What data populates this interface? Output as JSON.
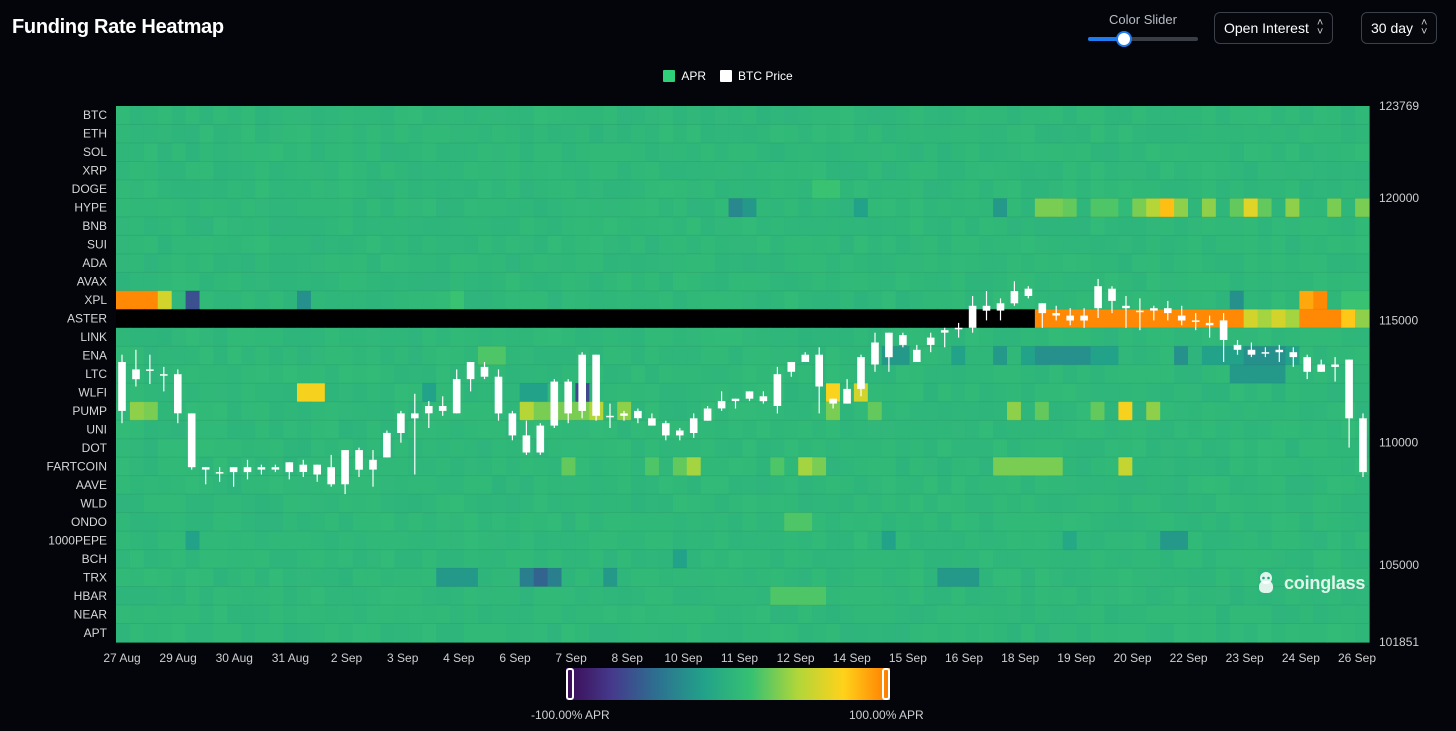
{
  "header": {
    "title": "Funding Rate Heatmap",
    "slider_label": "Color Slider",
    "slider_value": 0.33,
    "metric_select": "Open Interest",
    "range_select": "30 day"
  },
  "legend": [
    {
      "label": "APR",
      "color": "#2fd07a"
    },
    {
      "label": "BTC Price",
      "color": "#ffffff"
    }
  ],
  "colorbar": {
    "min_label": "-100.00% APR",
    "max_label": "100.00% APR",
    "stops": [
      "#3b0a55",
      "#453a8c",
      "#2c7290",
      "#22a389",
      "#36c172",
      "#b0d63a",
      "#ffd21a",
      "#ff7a00"
    ]
  },
  "watermark": "coinglass",
  "chart_data": {
    "type": "heatmap",
    "title": "Funding Rate Heatmap",
    "rows": [
      "BTC",
      "ETH",
      "SOL",
      "XRP",
      "DOGE",
      "HYPE",
      "BNB",
      "SUI",
      "ADA",
      "AVAX",
      "XPL",
      "ASTER",
      "LINK",
      "ENA",
      "LTC",
      "WLFI",
      "PUMP",
      "UNI",
      "DOT",
      "FARTCOIN",
      "AAVE",
      "WLD",
      "ONDO",
      "1000PEPE",
      "BCH",
      "TRX",
      "HBAR",
      "NEAR",
      "APT"
    ],
    "x_labels": [
      "27 Aug",
      "29 Aug",
      "30 Aug",
      "31 Aug",
      "2 Sep",
      "3 Sep",
      "4 Sep",
      "6 Sep",
      "7 Sep",
      "8 Sep",
      "10 Sep",
      "11 Sep",
      "12 Sep",
      "14 Sep",
      "15 Sep",
      "16 Sep",
      "18 Sep",
      "19 Sep",
      "20 Sep",
      "22 Sep",
      "23 Sep",
      "24 Sep",
      "26 Sep"
    ],
    "columns": 90,
    "value_range": [
      -100,
      100
    ],
    "value_unit": "% APR",
    "default_value": 5,
    "highlights": [
      {
        "row": "XPL",
        "start": 0,
        "end": 2,
        "value": 95
      },
      {
        "row": "XPL",
        "start": 3,
        "end": 3,
        "value": 55
      },
      {
        "row": "XPL",
        "start": 5,
        "end": 5,
        "value": -60
      },
      {
        "row": "XPL",
        "start": 13,
        "end": 13,
        "value": -25
      },
      {
        "row": "XPL",
        "start": 24,
        "end": 24,
        "value": 15
      },
      {
        "row": "XPL",
        "start": 80,
        "end": 80,
        "value": -25
      },
      {
        "row": "XPL",
        "start": 85,
        "end": 85,
        "value": 85
      },
      {
        "row": "XPL",
        "start": 86,
        "end": 86,
        "value": 95
      },
      {
        "row": "XPL",
        "start": 88,
        "end": 89,
        "value": 15
      },
      {
        "row": "ASTER",
        "start": 0,
        "end": 65,
        "value": -100
      },
      {
        "row": "ASTER",
        "start": 66,
        "end": 80,
        "value": 95
      },
      {
        "row": "ASTER",
        "start": 81,
        "end": 81,
        "value": 55
      },
      {
        "row": "ASTER",
        "start": 82,
        "end": 82,
        "value": 40
      },
      {
        "row": "ASTER",
        "start": 83,
        "end": 83,
        "value": 55
      },
      {
        "row": "ASTER",
        "start": 84,
        "end": 84,
        "value": 40
      },
      {
        "row": "ASTER",
        "start": 85,
        "end": 87,
        "value": 95
      },
      {
        "row": "ASTER",
        "start": 88,
        "end": 88,
        "value": 75
      },
      {
        "row": "ASTER",
        "start": 89,
        "end": 89,
        "value": 35
      },
      {
        "row": "HYPE",
        "start": 44,
        "end": 44,
        "value": -30
      },
      {
        "row": "HYPE",
        "start": 45,
        "end": 45,
        "value": -20
      },
      {
        "row": "HYPE",
        "start": 53,
        "end": 53,
        "value": -15
      },
      {
        "row": "HYPE",
        "start": 63,
        "end": 63,
        "value": -20
      },
      {
        "row": "HYPE",
        "start": 66,
        "end": 67,
        "value": 30
      },
      {
        "row": "HYPE",
        "start": 68,
        "end": 68,
        "value": 25
      },
      {
        "row": "HYPE",
        "start": 70,
        "end": 71,
        "value": 20
      },
      {
        "row": "HYPE",
        "start": 73,
        "end": 73,
        "value": 30
      },
      {
        "row": "HYPE",
        "start": 74,
        "end": 74,
        "value": 45
      },
      {
        "row": "HYPE",
        "start": 75,
        "end": 75,
        "value": 78
      },
      {
        "row": "HYPE",
        "start": 76,
        "end": 76,
        "value": 35
      },
      {
        "row": "HYPE",
        "start": 78,
        "end": 78,
        "value": 35
      },
      {
        "row": "HYPE",
        "start": 80,
        "end": 80,
        "value": 25
      },
      {
        "row": "HYPE",
        "start": 81,
        "end": 81,
        "value": 60
      },
      {
        "row": "HYPE",
        "start": 82,
        "end": 82,
        "value": 25
      },
      {
        "row": "HYPE",
        "start": 84,
        "end": 84,
        "value": 35
      },
      {
        "row": "HYPE",
        "start": 87,
        "end": 87,
        "value": 30
      },
      {
        "row": "HYPE",
        "start": 89,
        "end": 89,
        "value": 30
      },
      {
        "row": "DOGE",
        "start": 50,
        "end": 51,
        "value": 15
      },
      {
        "row": "ENA",
        "start": 26,
        "end": 27,
        "value": 20
      },
      {
        "row": "ENA",
        "start": 55,
        "end": 56,
        "value": -20
      },
      {
        "row": "ENA",
        "start": 60,
        "end": 60,
        "value": -15
      },
      {
        "row": "ENA",
        "start": 63,
        "end": 63,
        "value": -20
      },
      {
        "row": "ENA",
        "start": 65,
        "end": 65,
        "value": -15
      },
      {
        "row": "ENA",
        "start": 66,
        "end": 69,
        "value": -25
      },
      {
        "row": "ENA",
        "start": 70,
        "end": 71,
        "value": -15
      },
      {
        "row": "ENA",
        "start": 76,
        "end": 76,
        "value": -25
      },
      {
        "row": "ENA",
        "start": 78,
        "end": 80,
        "value": -15
      },
      {
        "row": "ENA",
        "start": 81,
        "end": 83,
        "value": -25
      },
      {
        "row": "ENA",
        "start": 84,
        "end": 84,
        "value": -15
      },
      {
        "row": "LTC",
        "start": 80,
        "end": 83,
        "value": -20
      },
      {
        "row": "WLFI",
        "start": 13,
        "end": 14,
        "value": 68
      },
      {
        "row": "WLFI",
        "start": 22,
        "end": 22,
        "value": -15
      },
      {
        "row": "WLFI",
        "start": 29,
        "end": 30,
        "value": -15
      },
      {
        "row": "WLFI",
        "start": 33,
        "end": 33,
        "value": -65
      },
      {
        "row": "WLFI",
        "start": 51,
        "end": 51,
        "value": 70
      },
      {
        "row": "WLFI",
        "start": 53,
        "end": 53,
        "value": 55
      },
      {
        "row": "PUMP",
        "start": 1,
        "end": 1,
        "value": 35
      },
      {
        "row": "PUMP",
        "start": 2,
        "end": 2,
        "value": 30
      },
      {
        "row": "PUMP",
        "start": 29,
        "end": 29,
        "value": 45
      },
      {
        "row": "PUMP",
        "start": 30,
        "end": 33,
        "value": 30
      },
      {
        "row": "PUMP",
        "start": 34,
        "end": 34,
        "value": 45
      },
      {
        "row": "PUMP",
        "start": 36,
        "end": 36,
        "value": 35
      },
      {
        "row": "PUMP",
        "start": 51,
        "end": 51,
        "value": 30
      },
      {
        "row": "PUMP",
        "start": 54,
        "end": 54,
        "value": 25
      },
      {
        "row": "PUMP",
        "start": 64,
        "end": 64,
        "value": 35
      },
      {
        "row": "PUMP",
        "start": 66,
        "end": 66,
        "value": 25
      },
      {
        "row": "PUMP",
        "start": 70,
        "end": 70,
        "value": 25
      },
      {
        "row": "PUMP",
        "start": 72,
        "end": 72,
        "value": 68
      },
      {
        "row": "PUMP",
        "start": 74,
        "end": 74,
        "value": 35
      },
      {
        "row": "FARTCOIN",
        "start": 32,
        "end": 32,
        "value": 25
      },
      {
        "row": "FARTCOIN",
        "start": 38,
        "end": 38,
        "value": 20
      },
      {
        "row": "FARTCOIN",
        "start": 40,
        "end": 40,
        "value": 25
      },
      {
        "row": "FARTCOIN",
        "start": 41,
        "end": 41,
        "value": 40
      },
      {
        "row": "FARTCOIN",
        "start": 47,
        "end": 47,
        "value": 20
      },
      {
        "row": "FARTCOIN",
        "start": 49,
        "end": 49,
        "value": 40
      },
      {
        "row": "FARTCOIN",
        "start": 50,
        "end": 50,
        "value": 30
      },
      {
        "row": "FARTCOIN",
        "start": 63,
        "end": 67,
        "value": 30
      },
      {
        "row": "FARTCOIN",
        "start": 72,
        "end": 72,
        "value": 50
      },
      {
        "row": "ONDO",
        "start": 48,
        "end": 49,
        "value": 20
      },
      {
        "row": "1000PEPE",
        "start": 5,
        "end": 5,
        "value": -15
      },
      {
        "row": "1000PEPE",
        "start": 55,
        "end": 55,
        "value": -15
      },
      {
        "row": "1000PEPE",
        "start": 68,
        "end": 68,
        "value": -10
      },
      {
        "row": "1000PEPE",
        "start": 75,
        "end": 76,
        "value": -20
      },
      {
        "row": "BCH",
        "start": 40,
        "end": 40,
        "value": -15
      },
      {
        "row": "TRX",
        "start": 23,
        "end": 25,
        "value": -20
      },
      {
        "row": "TRX",
        "start": 29,
        "end": 29,
        "value": -35
      },
      {
        "row": "TRX",
        "start": 30,
        "end": 30,
        "value": -50
      },
      {
        "row": "TRX",
        "start": 31,
        "end": 31,
        "value": -35
      },
      {
        "row": "TRX",
        "start": 35,
        "end": 35,
        "value": -20
      },
      {
        "row": "TRX",
        "start": 59,
        "end": 61,
        "value": -20
      },
      {
        "row": "HBAR",
        "start": 47,
        "end": 50,
        "value": 20
      }
    ],
    "btc_price": {
      "y_range": [
        101851,
        123769
      ],
      "y_ticks": [
        101851,
        105000,
        110000,
        115000,
        120000,
        123769
      ],
      "candles": [
        [
          111300,
          113300,
          113600,
          110800
        ],
        [
          112600,
          113000,
          113800,
          112300
        ],
        [
          113000,
          113000,
          113600,
          112400
        ],
        [
          112800,
          112800,
          113100,
          112100
        ],
        [
          112800,
          111200,
          113000,
          110800
        ],
        [
          111200,
          109000,
          111200,
          108900
        ],
        [
          109000,
          108900,
          109000,
          108300
        ],
        [
          108800,
          108800,
          109000,
          108400
        ],
        [
          108800,
          109000,
          109000,
          108200
        ],
        [
          109000,
          108800,
          109300,
          108500
        ],
        [
          108900,
          109000,
          109100,
          108700
        ],
        [
          109000,
          108900,
          109100,
          108800
        ],
        [
          108800,
          109200,
          109200,
          108500
        ],
        [
          109100,
          108800,
          109300,
          108600
        ],
        [
          108700,
          109100,
          109100,
          108400
        ],
        [
          109000,
          108300,
          109500,
          108200
        ],
        [
          108300,
          109700,
          109700,
          107900
        ],
        [
          109700,
          108900,
          109800,
          108600
        ],
        [
          108900,
          109300,
          109700,
          108200
        ],
        [
          109400,
          110400,
          110500,
          109400
        ],
        [
          110400,
          111200,
          111300,
          110000
        ],
        [
          111000,
          111200,
          112000,
          108700
        ],
        [
          111200,
          111500,
          111700,
          110600
        ],
        [
          111500,
          111300,
          111900,
          111100
        ],
        [
          111200,
          112600,
          113000,
          111200
        ],
        [
          112600,
          113300,
          113300,
          112100
        ],
        [
          113100,
          112700,
          113300,
          112600
        ],
        [
          112700,
          111200,
          113000,
          110900
        ],
        [
          111200,
          110300,
          111300,
          110100
        ],
        [
          110300,
          109600,
          110900,
          109500
        ],
        [
          109600,
          110700,
          110800,
          109500
        ],
        [
          110700,
          112500,
          112600,
          110600
        ],
        [
          112500,
          111200,
          112600,
          110800
        ],
        [
          111300,
          113600,
          113700,
          111000
        ],
        [
          113600,
          111100,
          113600,
          110900
        ],
        [
          111100,
          111100,
          111600,
          110600
        ],
        [
          111100,
          111200,
          111300,
          110900
        ],
        [
          111300,
          111000,
          111400,
          110800
        ],
        [
          111000,
          110700,
          111200,
          110700
        ],
        [
          110800,
          110300,
          110900,
          110100
        ],
        [
          110300,
          110500,
          110600,
          110100
        ],
        [
          110400,
          111000,
          111200,
          110200
        ],
        [
          110900,
          111400,
          111500,
          110900
        ],
        [
          111400,
          111700,
          112100,
          111300
        ],
        [
          111700,
          111800,
          111800,
          111400
        ],
        [
          111800,
          112100,
          112100,
          111700
        ],
        [
          111900,
          111700,
          112100,
          111600
        ],
        [
          111500,
          112800,
          113100,
          111200
        ],
        [
          112900,
          113300,
          113300,
          112700
        ],
        [
          113300,
          113600,
          113700,
          113300
        ],
        [
          113600,
          112300,
          113900,
          111200
        ],
        [
          111800,
          111600,
          111800,
          111400
        ],
        [
          111600,
          112200,
          112600,
          111600
        ],
        [
          112200,
          113500,
          113600,
          111900
        ],
        [
          113200,
          114100,
          114500,
          112900
        ],
        [
          113500,
          114500,
          114500,
          112900
        ],
        [
          114000,
          114400,
          114500,
          113900
        ],
        [
          113300,
          113800,
          114000,
          113800
        ],
        [
          114000,
          114300,
          114500,
          113700
        ],
        [
          114500,
          114600,
          114700,
          113900
        ],
        [
          114700,
          114700,
          114900,
          114300
        ],
        [
          114700,
          115600,
          116000,
          114500
        ],
        [
          115600,
          115400,
          116200,
          115000
        ],
        [
          115400,
          115700,
          115900,
          115000
        ],
        [
          115700,
          116200,
          116600,
          115600
        ],
        [
          116300,
          116000,
          116400,
          115900
        ],
        [
          115700,
          115300,
          115700,
          114700
        ],
        [
          115300,
          115200,
          115600,
          115000
        ],
        [
          115200,
          115000,
          115500,
          114800
        ],
        [
          115000,
          115200,
          115500,
          114700
        ],
        [
          115500,
          116400,
          116700,
          115100
        ],
        [
          116300,
          115800,
          116400,
          115300
        ],
        [
          115600,
          115500,
          116000,
          114700
        ],
        [
          115400,
          115400,
          115900,
          114600
        ],
        [
          115400,
          115500,
          115600,
          115000
        ],
        [
          115500,
          115300,
          115800,
          115000
        ],
        [
          115200,
          115000,
          115600,
          114800
        ],
        [
          115000,
          115000,
          115300,
          114600
        ],
        [
          114900,
          114800,
          115200,
          114300
        ],
        [
          115000,
          114200,
          115300,
          113300
        ],
        [
          114000,
          113800,
          114200,
          113600
        ],
        [
          113800,
          113600,
          114100,
          113500
        ],
        [
          113700,
          113700,
          113900,
          113500
        ],
        [
          113800,
          113700,
          114000,
          113300
        ],
        [
          113700,
          113500,
          113900,
          113100
        ],
        [
          113500,
          112900,
          113600,
          112600
        ],
        [
          112900,
          113200,
          113400,
          112900
        ],
        [
          113200,
          113100,
          113500,
          112500
        ],
        [
          113400,
          111000,
          113400,
          109800
        ],
        [
          111000,
          108800,
          111200,
          108600
        ]
      ]
    }
  }
}
